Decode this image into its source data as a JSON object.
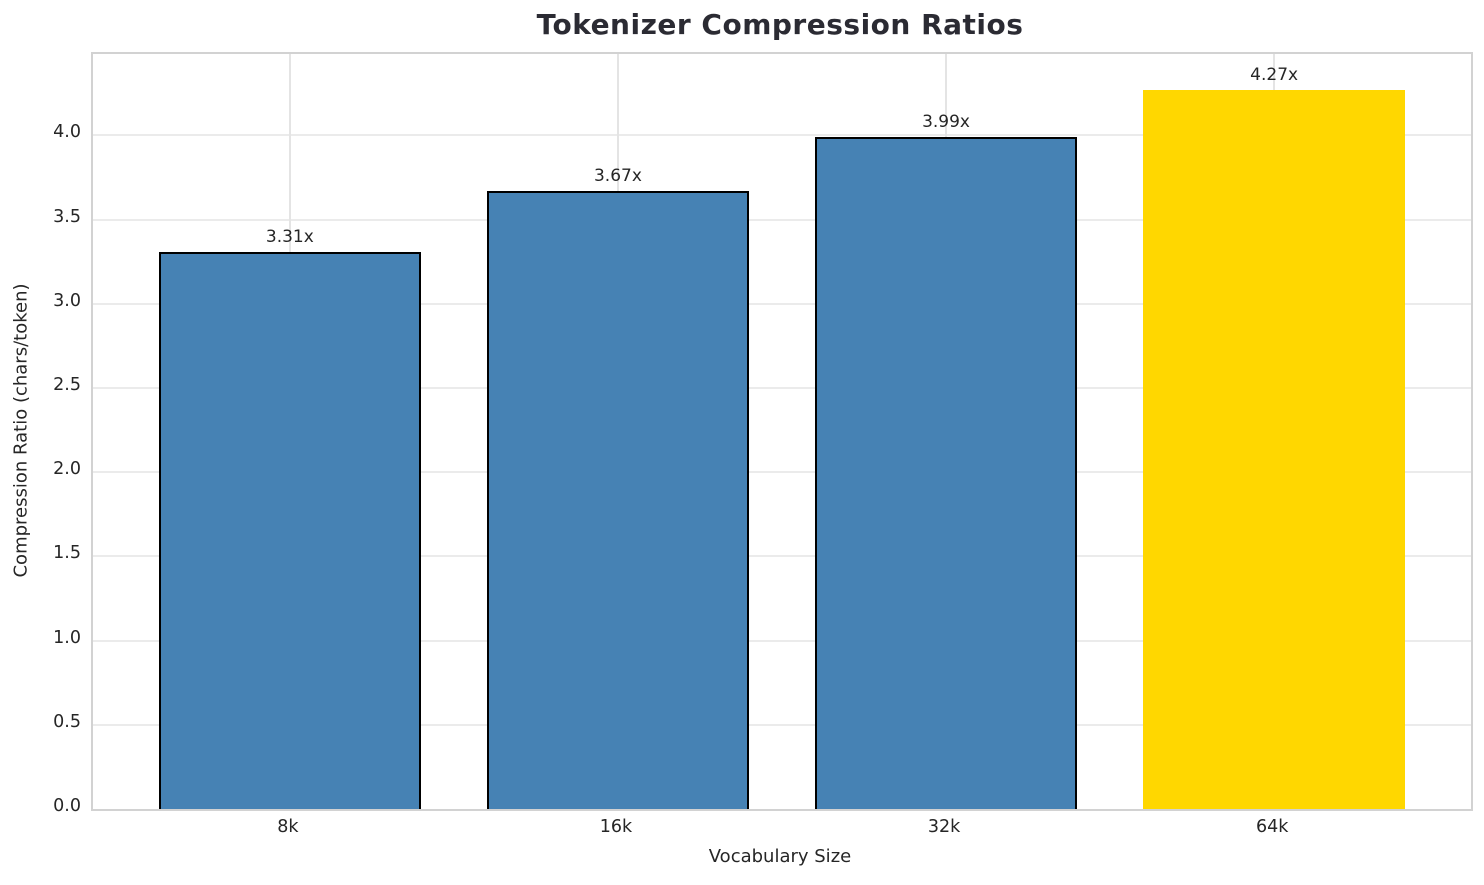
{
  "chart_data": {
    "type": "bar",
    "title": "Tokenizer Compression Ratios",
    "xlabel": "Vocabulary Size",
    "ylabel": "Compression Ratio (chars/token)",
    "categories": [
      "8k",
      "16k",
      "32k",
      "64k"
    ],
    "values": [
      3.31,
      3.67,
      3.99,
      4.27
    ],
    "bar_labels": [
      "3.31x",
      "3.67x",
      "3.99x",
      "4.27x"
    ],
    "yticks": [
      0.0,
      0.5,
      1.0,
      1.5,
      2.0,
      2.5,
      3.0,
      3.5,
      4.0
    ],
    "ytick_labels": [
      "0.0",
      "0.5",
      "1.0",
      "1.5",
      "2.0",
      "2.5",
      "3.0",
      "3.5",
      "4.0"
    ],
    "ylim": [
      0,
      4.4835
    ],
    "xlim": [
      -0.6,
      3.6
    ],
    "bar_width_units": 0.8,
    "grid": true,
    "legend": "none",
    "bar_colors": [
      "#4682B4",
      "#4682B4",
      "#4682B4",
      "#FFD700"
    ],
    "bar_edge_colors": [
      "#000000",
      "#000000",
      "#000000",
      "none"
    ],
    "colors": {
      "default_bar": "#4682B4",
      "highlight_bar": "#FFD700",
      "bar_edge": "#000000",
      "gridline": "#ebebeb",
      "spine": "#d2d2d2",
      "text": "#262626",
      "background": "#ffffff"
    }
  }
}
